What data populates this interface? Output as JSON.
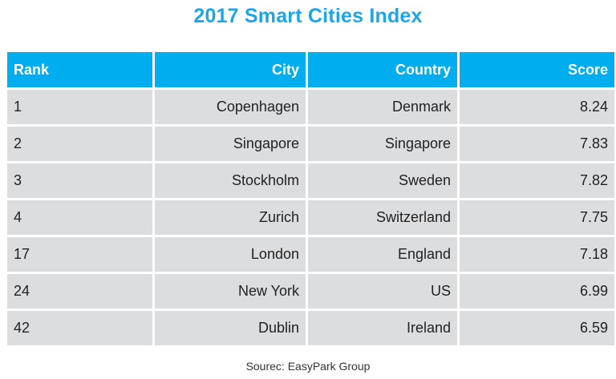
{
  "chart_data": {
    "type": "table",
    "title": "2017 Smart Cities Index",
    "columns": [
      "Rank",
      "City",
      "Country",
      "Score"
    ],
    "rows": [
      {
        "rank": "1",
        "city": "Copenhagen",
        "country": "Denmark",
        "score": "8.24"
      },
      {
        "rank": "2",
        "city": "Singapore",
        "country": "Singapore",
        "score": "7.83"
      },
      {
        "rank": "3",
        "city": "Stockholm",
        "country": "Sweden",
        "score": "7.82"
      },
      {
        "rank": "4",
        "city": "Zurich",
        "country": "Switzerland",
        "score": "7.75"
      },
      {
        "rank": "17",
        "city": "London",
        "country": "England",
        "score": "7.18"
      },
      {
        "rank": "24",
        "city": "New York",
        "country": "US",
        "score": "6.99"
      },
      {
        "rank": "42",
        "city": "Dublin",
        "country": "Ireland",
        "score": "6.59"
      }
    ],
    "source": "Sourec: EasyPark Group"
  },
  "colors": {
    "title": "#1ba6e8",
    "header_bg": "#00aeef",
    "header_text": "#ffffff",
    "cell_bg": "#dcdddf",
    "cell_text": "#222222"
  }
}
